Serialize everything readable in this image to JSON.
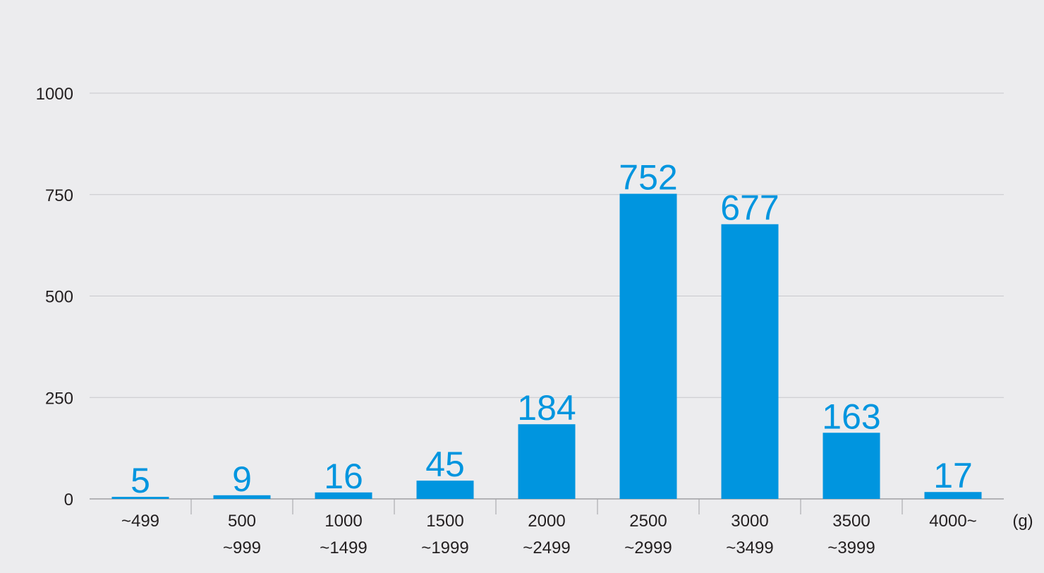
{
  "chart_data": {
    "type": "bar",
    "categories": [
      [
        "~499"
      ],
      [
        "500",
        "~999"
      ],
      [
        "1000",
        "~1499"
      ],
      [
        "1500",
        "~1999"
      ],
      [
        "2000",
        "~2499"
      ],
      [
        "2500",
        "~2999"
      ],
      [
        "3000",
        "~3499"
      ],
      [
        "3500",
        "~3999"
      ],
      [
        "4000~"
      ]
    ],
    "values": [
      5,
      9,
      16,
      45,
      184,
      752,
      677,
      163,
      17
    ],
    "title": "",
    "xlabel": "",
    "ylabel": "",
    "x_unit": "(g)",
    "ylim": [
      0,
      1000
    ],
    "yticks": [
      0,
      250,
      500,
      750,
      1000
    ],
    "grid": true,
    "legend": "none",
    "colors": {
      "bar": "#0095df",
      "data_label": "#0095df",
      "grid": "#c8c8cc",
      "axis": "#a0a0a4",
      "background": "#ececee",
      "text": "#231f20"
    }
  }
}
